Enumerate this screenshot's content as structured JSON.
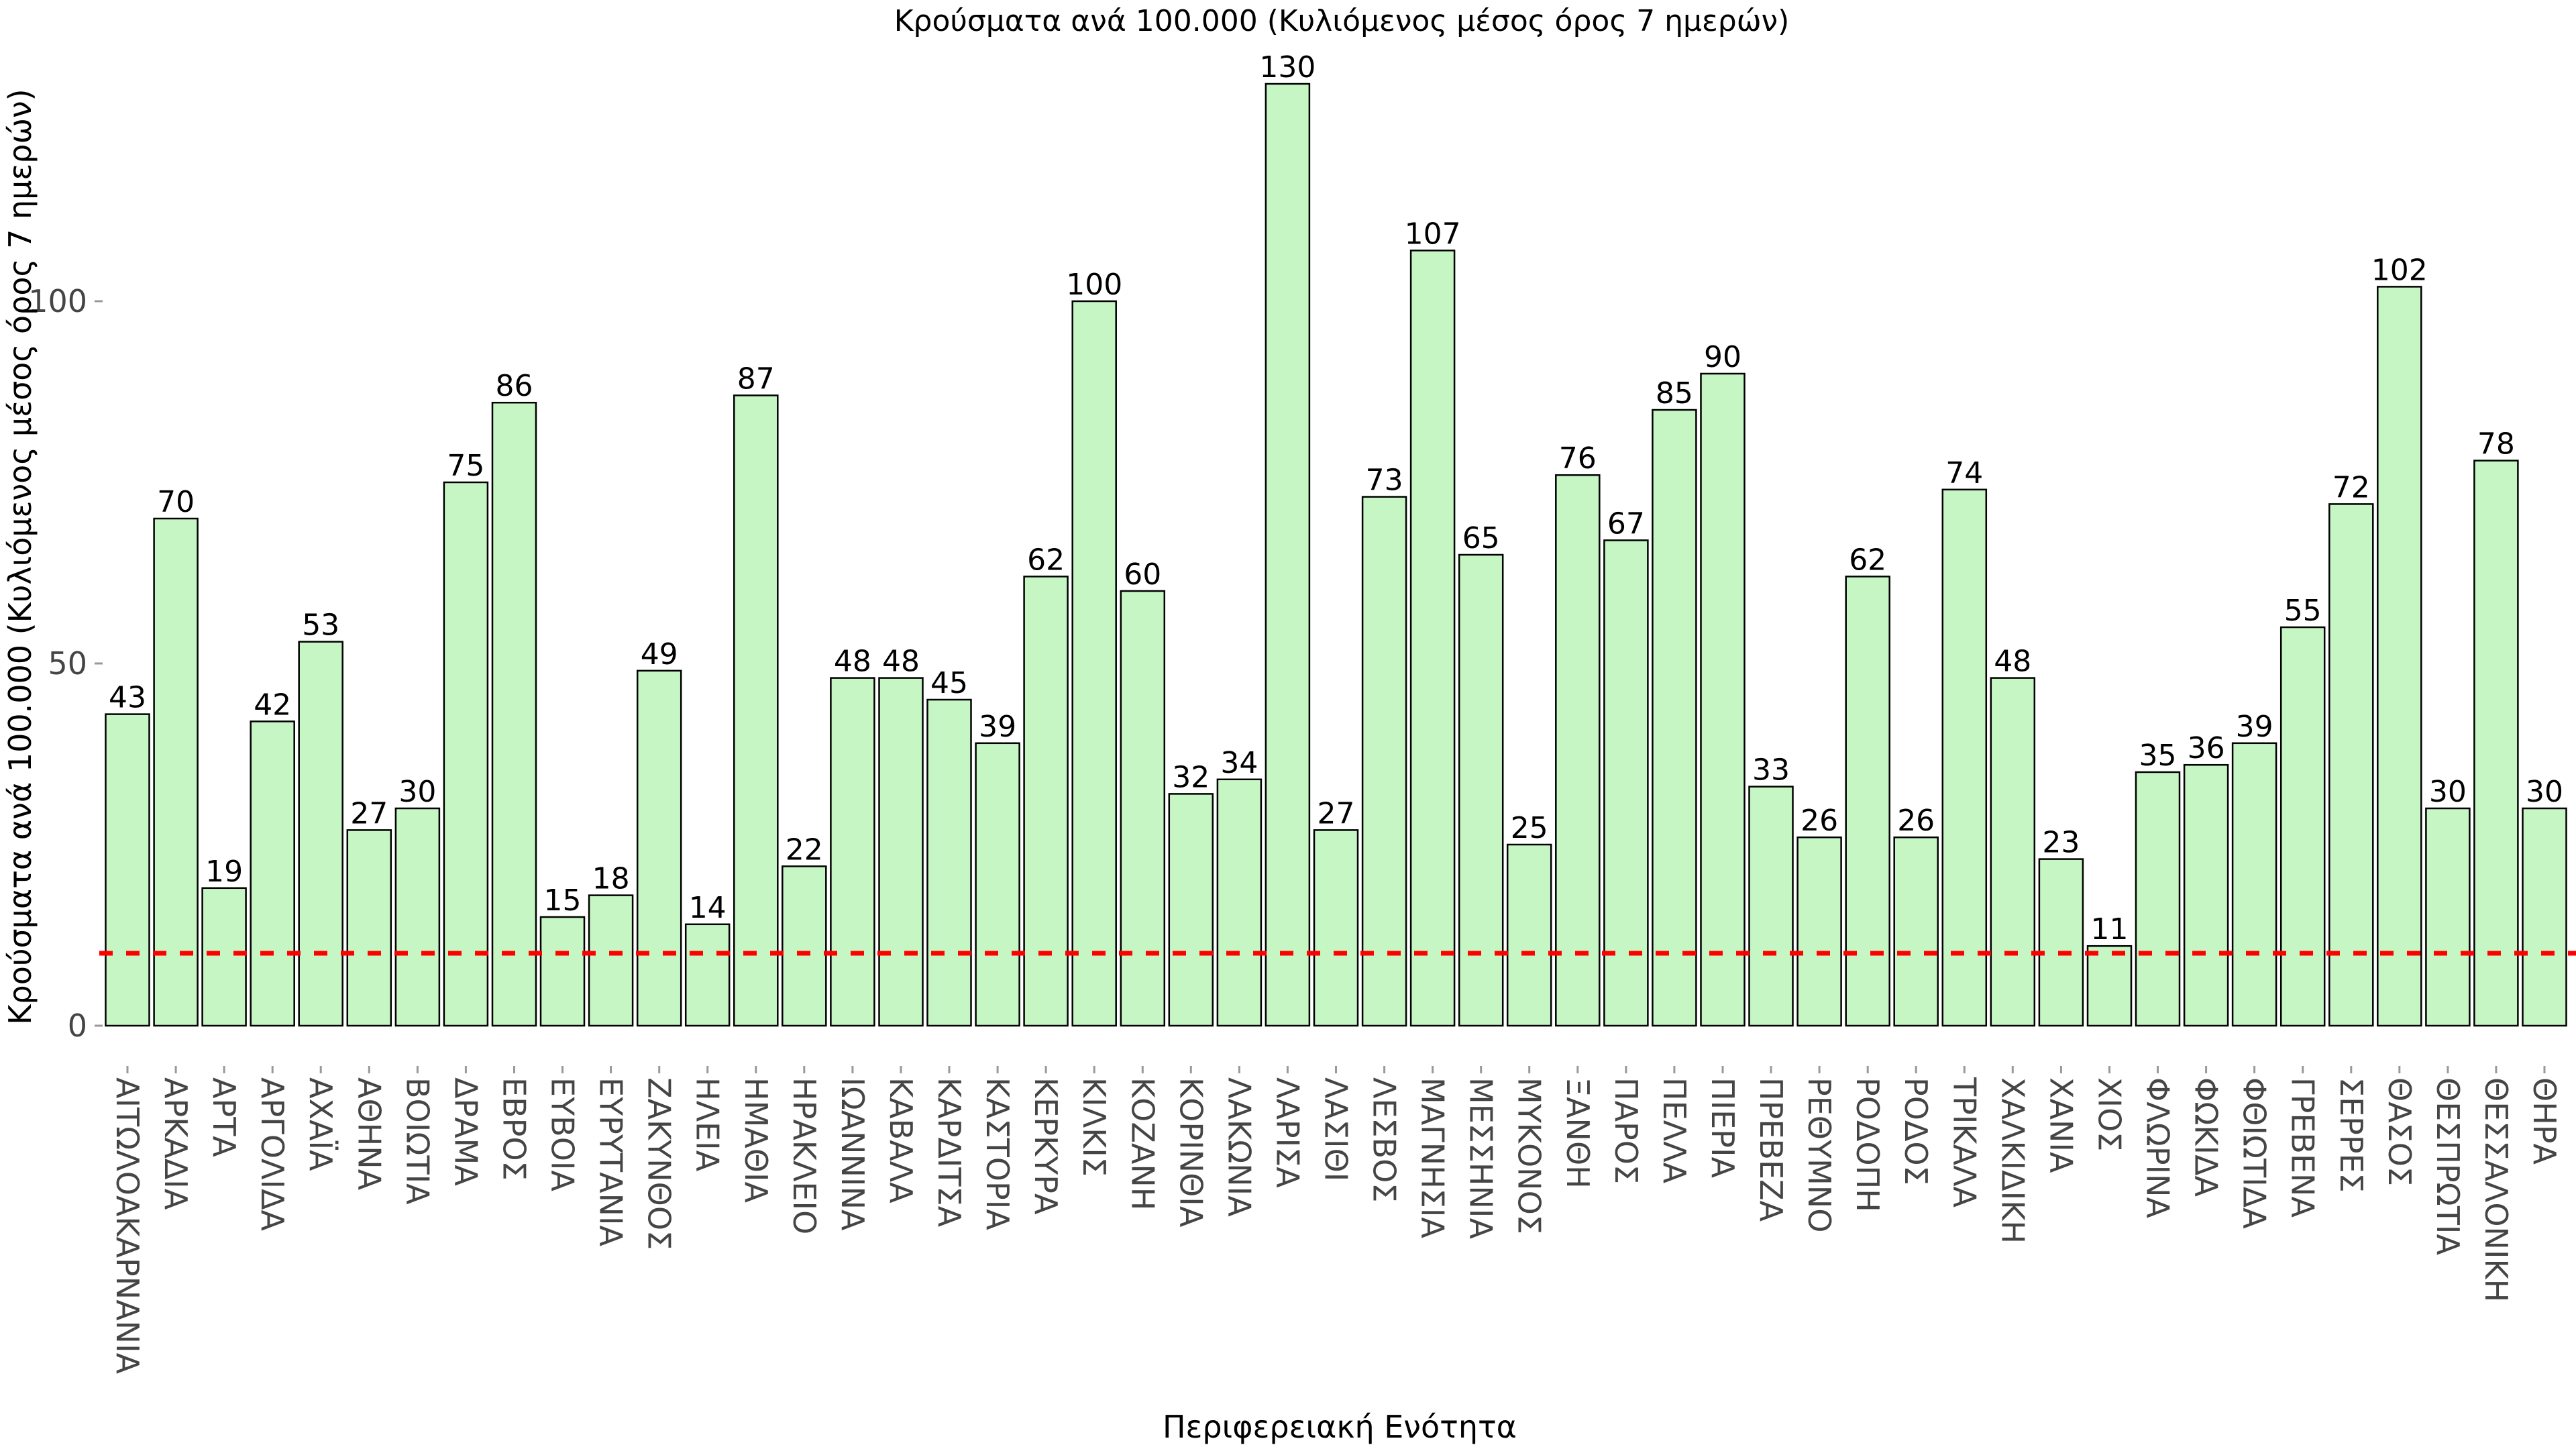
{
  "title": "Κρούσματα ανά 100.000 (Κυλιόμενος μέσος όρος 7 ημερών)",
  "axes": {
    "x_title": "Περιφερειακή Ενότητα",
    "y_title": "Κρούσματα ανά 100.000 (Κυλιόμενος μέσος όρος 7 ημερών)",
    "y_tick_labels": [
      "0",
      "50",
      "100"
    ]
  },
  "colors": {
    "bar_fill": "#c5f6c4",
    "bar_edge": "#000000",
    "reference_line": "#ff0000",
    "tick_label": "#454545",
    "tick_mark": "#999999",
    "value_label": "#000000",
    "background": "#ffffff"
  },
  "chart_data": {
    "type": "bar",
    "title": "Κρούσματα ανά 100.000 (Κυλιόμενος μέσος όρος 7 ημερών)",
    "xlabel": "Περιφερειακή Ενότητα",
    "ylabel": "Κρούσματα ανά 100.000 (Κυλιόμενος μέσος όρος 7 ημερών)",
    "categories": [
      "ΑΙΤΩΛΟΑΚΑΡΝΑΝΙΑ",
      "ΑΡΚΑΔΙΑ",
      "ΑΡΤΑ",
      "ΑΡΓΟΛΙΔΑ",
      "ΑΧΑΪΑ",
      "ΑΘΗΝΑ",
      "ΒΟΙΩΤΙΑ",
      "ΔΡΑΜΑ",
      "ΕΒΡΟΣ",
      "ΕΥΒΟΙΑ",
      "ΕΥΡΥΤΑΝΙΑ",
      "ΖΑΚΥΝΘΟΣ",
      "ΗΛΕΙΑ",
      "ΗΜΑΘΙΑ",
      "ΗΡΑΚΛΕΙΟ",
      "ΙΩΑΝΝΙΝΑ",
      "ΚΑΒΑΛΑ",
      "ΚΑΡΔΙΤΣΑ",
      "ΚΑΣΤΟΡΙΑ",
      "ΚΕΡΚΥΡΑ",
      "ΚΙΛΚΙΣ",
      "ΚΟΖΑΝΗ",
      "ΚΟΡΙΝΘΙΑ",
      "ΛΑΚΩΝΙΑ",
      "ΛΑΡΙΣΑ",
      "ΛΑΣΙΘΙ",
      "ΛΕΣΒΟΣ",
      "ΜΑΓΝΗΣΙΑ",
      "ΜΕΣΣΗΝΙΑ",
      "ΜΥΚΟΝΟΣ",
      "ΞΑΝΘΗ",
      "ΠΑΡΟΣ",
      "ΠΕΛΛΑ",
      "ΠΙΕΡΙΑ",
      "ΠΡΕΒΕΖΑ",
      "ΡΕΘΥΜΝΟ",
      "ΡΟΔΟΠΗ",
      "ΡΟΔΟΣ",
      "ΤΡΙΚΑΛΑ",
      "ΧΑΛΚΙΔΙΚΗ",
      "ΧΑΝΙΑ",
      "ΧΙΟΣ",
      "ΦΛΩΡΙΝΑ",
      "ΦΩΚΙΔΑ",
      "ΦΘΙΩΤΙΔΑ",
      "ΓΡΕΒΕΝΑ",
      "ΣΕΡΡΕΣ",
      "ΘΑΣΟΣ",
      "ΘΕΣΠΡΩΤΙΑ",
      "ΘΕΣΣΑΛΟΝΙΚΗ",
      "ΘΗΡΑ"
    ],
    "values": [
      43,
      70,
      19,
      42,
      53,
      27,
      30,
      75,
      86,
      15,
      18,
      49,
      14,
      87,
      22,
      48,
      48,
      45,
      39,
      62,
      100,
      60,
      32,
      34,
      130,
      27,
      73,
      107,
      65,
      25,
      76,
      67,
      85,
      90,
      33,
      26,
      62,
      26,
      74,
      48,
      23,
      11,
      35,
      36,
      39,
      55,
      72,
      102,
      30,
      78,
      30
    ],
    "ylim": [
      0,
      140
    ],
    "yticks": [
      0,
      50,
      100
    ],
    "grid": false,
    "legend": "none",
    "value_labels": true,
    "reference_line": {
      "y": 10,
      "style": "dashed",
      "color": "#ff0000"
    }
  }
}
